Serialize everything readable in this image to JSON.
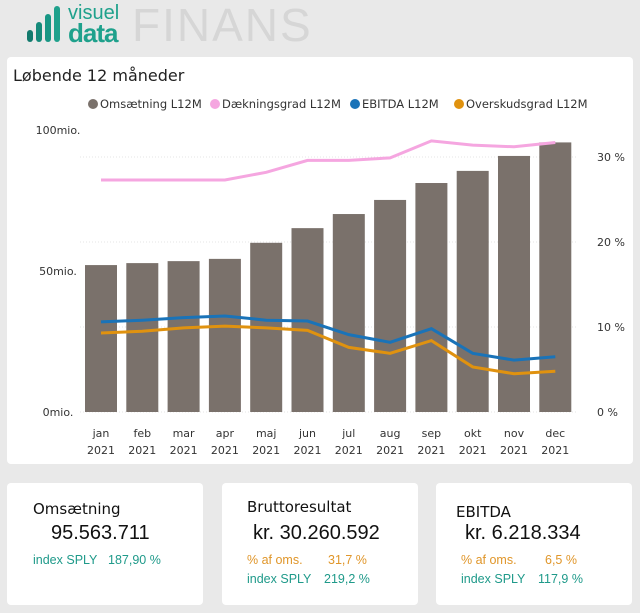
{
  "header": {
    "logo_top": "visuel",
    "logo_bottom": "data",
    "title": "FINANS"
  },
  "chart": {
    "title": "Løbende 12 måneder"
  },
  "chart_data": {
    "type": "bar+line",
    "title": "Løbende 12 måneder",
    "categories": [
      "jan",
      "feb",
      "mar",
      "apr",
      "maj",
      "jun",
      "jul",
      "aug",
      "sep",
      "okt",
      "nov",
      "dec"
    ],
    "category_year": "2021",
    "legend_position": "top",
    "y_left": {
      "ticks": [
        "0mio.",
        "50mio.",
        "100mio."
      ],
      "range": [
        0,
        100
      ],
      "unit": "mio."
    },
    "y_right": {
      "ticks": [
        "0 %",
        "10 %",
        "20 %",
        "30 %"
      ],
      "range": [
        0,
        33
      ],
      "unit": "%"
    },
    "series": [
      {
        "name": "Omsætning L12M",
        "type": "bar",
        "axis": "left",
        "color": "#7a716b",
        "values": [
          52.1,
          52.8,
          53.5,
          54.3,
          60.0,
          65.2,
          70.2,
          75.2,
          81.2,
          85.5,
          90.8,
          95.6
        ]
      },
      {
        "name": "Dækningsgrad L12M",
        "type": "line",
        "axis": "right",
        "color": "#f5a6e0",
        "values": [
          27.3,
          27.3,
          27.3,
          27.3,
          28.2,
          29.6,
          29.6,
          29.9,
          31.9,
          31.4,
          31.2,
          31.7
        ]
      },
      {
        "name": "EBITDA L12M",
        "type": "line",
        "axis": "right",
        "color": "#1a73b8",
        "values": [
          10.6,
          10.8,
          11.1,
          11.3,
          10.8,
          10.7,
          9.1,
          8.2,
          9.8,
          6.9,
          6.1,
          6.5
        ]
      },
      {
        "name": "Overskudsgrad L12M",
        "type": "line",
        "axis": "right",
        "color": "#e0920f",
        "values": [
          9.3,
          9.5,
          9.9,
          10.1,
          9.9,
          9.6,
          7.6,
          6.9,
          8.4,
          5.3,
          4.5,
          4.8
        ]
      }
    ]
  },
  "kpis": [
    {
      "title": "Omsætning",
      "value": "95.563.711",
      "index_label": "index SPLY",
      "index_value": "187,90 %"
    },
    {
      "title": "Bruttoresultat",
      "value": "kr. 30.260.592",
      "pct_label": "% af oms.",
      "pct_value": "31,7 %",
      "index_label": "index SPLY",
      "index_value": "219,2 %"
    },
    {
      "title": "EBITDA",
      "value": "kr. 6.218.334",
      "pct_label": "% af oms.",
      "pct_value": "6,5 %",
      "index_label": "index SPLY",
      "index_value": "117,9 %"
    }
  ]
}
